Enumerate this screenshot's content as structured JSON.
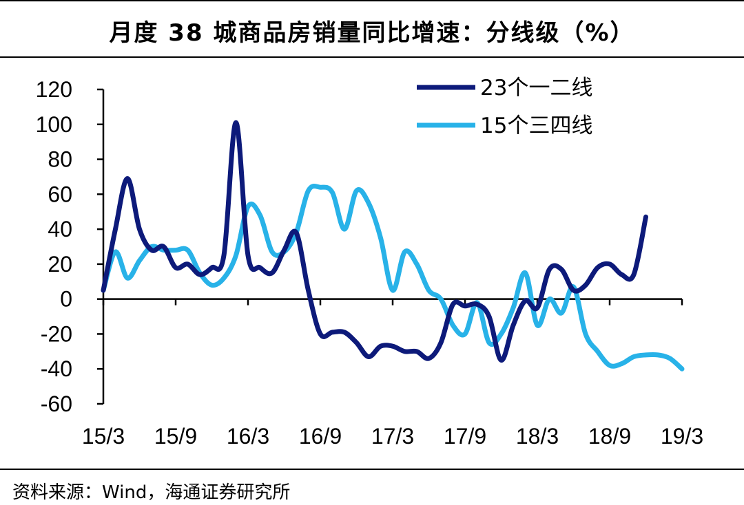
{
  "title": "月度 38 城商品房销量同比增速：分线级（%）",
  "source": "资料来源：Wind，海通证券研究所",
  "chart_data": {
    "type": "line",
    "title": "月度 38 城商品房销量同比增速：分线级（%）",
    "xlabel": "",
    "ylabel": "",
    "ylim": [
      -60,
      120
    ],
    "yticks": [
      -60,
      -40,
      -20,
      0,
      20,
      40,
      60,
      80,
      100,
      120
    ],
    "x_tick_labels": [
      "15/3",
      "15/9",
      "16/3",
      "16/9",
      "17/3",
      "17/9",
      "18/3",
      "18/9",
      "19/3"
    ],
    "x": [
      "15/3",
      "15/4",
      "15/5",
      "15/6",
      "15/7",
      "15/8",
      "15/9",
      "15/10",
      "15/11",
      "15/12",
      "16/1",
      "16/2",
      "16/3",
      "16/4",
      "16/5",
      "16/6",
      "16/7",
      "16/8",
      "16/9",
      "16/10",
      "16/11",
      "16/12",
      "17/1",
      "17/2",
      "17/3",
      "17/4",
      "17/5",
      "17/6",
      "17/7",
      "17/8",
      "17/9",
      "17/10",
      "17/11",
      "17/12",
      "18/1",
      "18/2",
      "18/3",
      "18/4",
      "18/5",
      "18/6",
      "18/7",
      "18/8",
      "18/9",
      "18/10",
      "18/11",
      "18/12",
      "19/1",
      "19/2",
      "19/3"
    ],
    "grid": false,
    "legend_position": "top-right",
    "series": [
      {
        "name": "23个一二线",
        "color": "#0d1a7a",
        "values": [
          5,
          40,
          69,
          40,
          28,
          30,
          18,
          20,
          14,
          18,
          25,
          101,
          25,
          18,
          15,
          28,
          38,
          5,
          -20,
          -19,
          -19,
          -25,
          -33,
          -27,
          -27,
          -30,
          -30,
          -34,
          -25,
          -3,
          -4,
          -3,
          -10,
          -35,
          -15,
          -1,
          -5,
          17,
          17,
          5,
          8,
          18,
          20,
          14,
          14,
          47,
          null,
          null,
          null
        ]
      },
      {
        "name": "15个三四线",
        "color": "#28b2e8",
        "values": [
          5,
          27,
          12,
          22,
          30,
          28,
          28,
          28,
          15,
          8,
          12,
          25,
          53,
          48,
          27,
          27,
          38,
          62,
          64,
          61,
          40,
          62,
          55,
          35,
          5,
          27,
          20,
          5,
          0,
          -15,
          -20,
          -2,
          -25,
          -20,
          -5,
          15,
          -15,
          0,
          -8,
          7,
          -20,
          -30,
          -38,
          -37,
          -33,
          -32,
          -32,
          -34,
          -40
        ]
      }
    ]
  }
}
